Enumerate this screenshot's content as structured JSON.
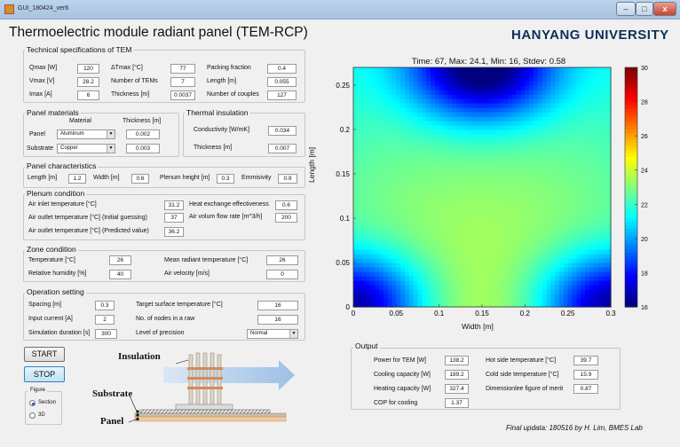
{
  "window": {
    "title": "GUI_180424_ver6"
  },
  "app": {
    "title": "Thermoelectric module radiant panel (TEM-RCP)",
    "brand": "HANYANG UNIVERSITY",
    "footer": "Final updata: 180516 by H. Lim, BMES Lab"
  },
  "tem": {
    "title": "Technical specifications of TEM",
    "qmax_label": "Qmax [W]",
    "qmax": "120",
    "dtmax_label": "ΔTmax [°C]",
    "dtmax": "77",
    "packing_label": "Packing fraction",
    "packing": "0.4",
    "vmax_label": "Vmax [V]",
    "vmax": "28.2",
    "ntems_label": "Number of TEMs",
    "ntems": "7",
    "length_label": "Length [m]",
    "length": "0.055",
    "imax_label": "Imax [A]",
    "imax": "6",
    "thickness_label": "Thickness [m]",
    "thickness": "0.0037",
    "ncouples_label": "Number of couples",
    "ncouples": "127"
  },
  "materials": {
    "title": "Panel materials",
    "material_header": "Material",
    "thickness_header": "Thickness [m]",
    "panel_label": "Panel",
    "panel_material": "Aluminum",
    "panel_thickness": "0.002",
    "substrate_label": "Substrate",
    "substrate_material": "Copper",
    "substrate_thickness": "0.003"
  },
  "insulation": {
    "title": "Thermal insulation",
    "conductivity_label": "Conductivity [W/mK]",
    "conductivity": "0.034",
    "thickness_label": "Thickness [m]",
    "thickness": "0.007"
  },
  "panel": {
    "title": "Panel characteristics",
    "length_label": "Length [m]",
    "length": "1.2",
    "width_label": "Width [m]",
    "width": "0.6",
    "plenum_label": "Plenum height [m]",
    "plenum": "0.3",
    "emissivity_label": "Emmisivity",
    "emissivity": "0.9"
  },
  "plenum": {
    "title": "Plenum condition",
    "inlet_label": "Air inlet temperature [°C]",
    "inlet": "31.2",
    "outlet_guess_label": "Air outlet temperature [°C] (Initial guessing)",
    "outlet_guess": "37",
    "outlet_pred_label": "Air outlet temperature [°C] (Predicted value)",
    "outlet_pred": "36.2",
    "hx_label": "Heat exchange effectiveness",
    "hx": "0.6",
    "flow_label": "Air volum flow rate [m^3/h]",
    "flow": "200"
  },
  "zone": {
    "title": "Zone condition",
    "temp_label": "Temperature [°C]",
    "temp": "26",
    "rh_label": "Relative humidity [%]",
    "rh": "40",
    "mrt_label": "Mean radiant temperature [°C]",
    "mrt": "26",
    "vel_label": "Air velocity [m/s]",
    "vel": "0"
  },
  "operation": {
    "title": "Operation setting",
    "spacing_label": "Spacing [m]",
    "spacing": "0.3",
    "current_label": "Input current [A]",
    "current": "2",
    "duration_label": "Simulation duration [s]",
    "duration": "300",
    "target_label": "Target surface temperature [°C]",
    "target": "16",
    "nodes_label": "No. of nodes in a raw",
    "nodes": "16",
    "precision_label": "Level of precision",
    "precision": "Normal"
  },
  "controls": {
    "start": "START",
    "stop": "STOP"
  },
  "figure": {
    "title": "Figure",
    "section": "Section",
    "threed": "3D"
  },
  "diagram": {
    "insulation": "Insulation",
    "substrate": "Substrate",
    "panel": "Panel"
  },
  "output": {
    "title": "Output",
    "power_label": "Power for TEM [W]",
    "power": "138.2",
    "cooling_label": "Cooling capacity [W]",
    "cooling": "189.2",
    "heating_label": "Heating capacity [W]",
    "heating": "327.4",
    "cop_label": "COP for cooling",
    "cop": "1.37",
    "hot_label": "Hot side temperature [°C]",
    "hot": "39.7",
    "cold_label": "Cold side temperature [°C]",
    "cold": "15.9",
    "merit_label": "Dimensionlee figure of merit",
    "merit": "0.87"
  },
  "chart_data": {
    "type": "heatmap",
    "title": "Time: 67, Max: 24.1, Min: 16, Stdev: 0.58",
    "xlabel": "Width [m]",
    "ylabel": "Length [m]",
    "xlim": [
      0,
      0.3
    ],
    "ylim": [
      0,
      0.27
    ],
    "xticks": [
      "0",
      "0.05",
      "0.1",
      "0.15",
      "0.2",
      "0.25",
      "0.3"
    ],
    "yticks": [
      "0",
      "0.05",
      "0.1",
      "0.15",
      "0.2",
      "0.25"
    ],
    "colorbar": {
      "min": 16,
      "max": 30,
      "ticks": [
        "16",
        "18",
        "20",
        "22",
        "24",
        "26",
        "28",
        "30"
      ]
    },
    "cold_spots": [
      {
        "x": 0.15,
        "y": 0.27,
        "t": 16
      },
      {
        "x": 0.0,
        "y": 0.0,
        "t": 16
      },
      {
        "x": 0.3,
        "y": 0.0,
        "t": 16
      }
    ],
    "warm_spot": {
      "x": 0.15,
      "y": 0.0,
      "t": 24.1
    }
  }
}
